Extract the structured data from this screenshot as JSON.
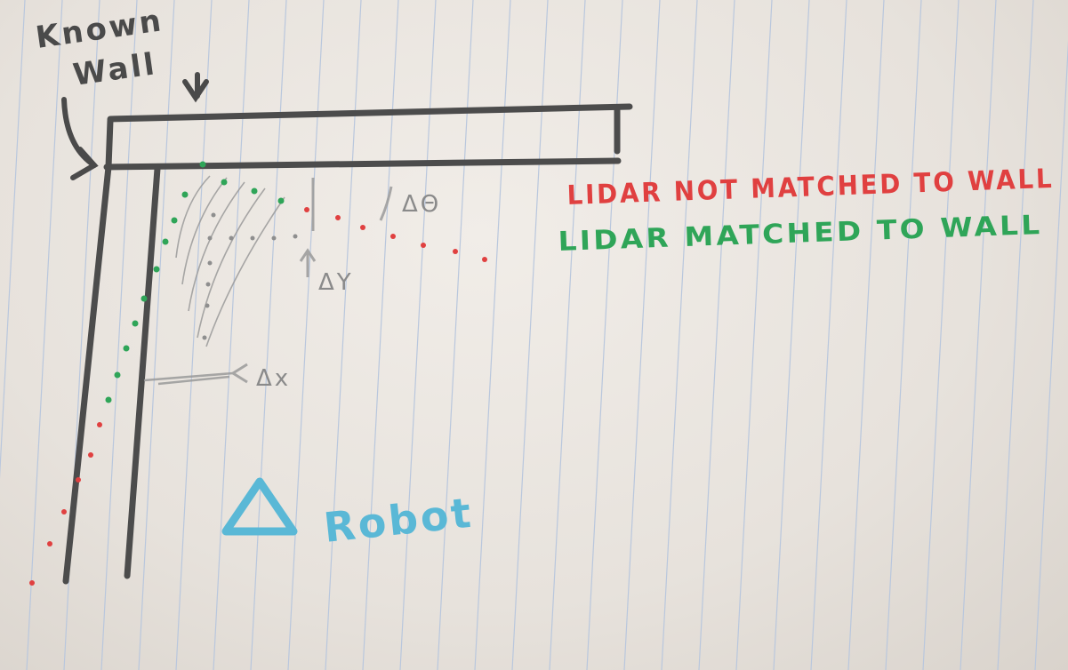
{
  "labels": {
    "known_wall": [
      "Known",
      "Wall"
    ],
    "delta_theta": "ΔΘ",
    "delta_y": "ΔY",
    "delta_x": "Δx",
    "legend_not_matched": "LIDAR NOT MATCHED TO WALL",
    "legend_matched": "LIDAR MATCHED TO WALL",
    "robot": "Robot"
  },
  "colors": {
    "wall": "#4c4c4c",
    "pencil": "#9a9a9a",
    "not_matched": "#e04040",
    "matched": "#2fa558",
    "robot": "#5ab8d6",
    "rule_line": "#b9c7dd"
  }
}
